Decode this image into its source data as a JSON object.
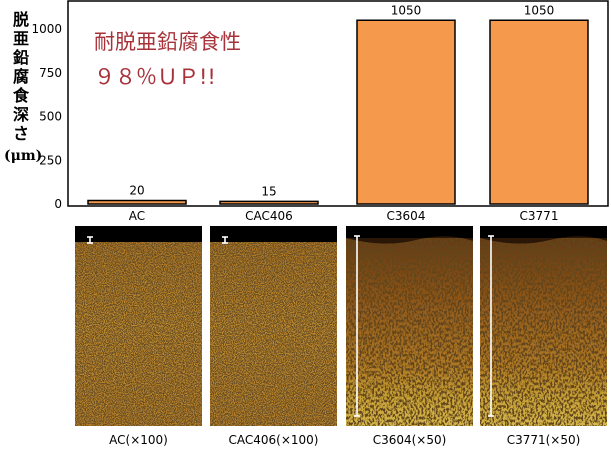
{
  "chart_data": {
    "type": "bar",
    "ylabel": "脱亜鉛腐食深さ",
    "yunit": "(μm)",
    "categories": [
      "AC",
      "CAC406",
      "C3604",
      "C3771"
    ],
    "values": [
      20,
      15,
      1050,
      1050
    ],
    "value_labels": [
      "20",
      "15",
      "1050",
      "1050"
    ],
    "ylim": [
      0,
      1050
    ],
    "yticks": [
      "0",
      "250",
      "500",
      "750",
      "1000"
    ],
    "grid": false,
    "annotation_lines": [
      "耐脱亜鉛腐食性",
      "９８％ＵＰ!!"
    ],
    "bar_color": "#f59a4d",
    "annotation_color": "#a8323a"
  },
  "micrographs": [
    {
      "label": "AC(×100)",
      "texture": "light",
      "scale_bar": "short"
    },
    {
      "label": "CAC406(×100)",
      "texture": "light",
      "scale_bar": "short"
    },
    {
      "label": "C3604(×50)",
      "texture": "dark",
      "scale_bar": "long"
    },
    {
      "label": "C3771(×50)",
      "texture": "dark",
      "scale_bar": "long"
    }
  ]
}
